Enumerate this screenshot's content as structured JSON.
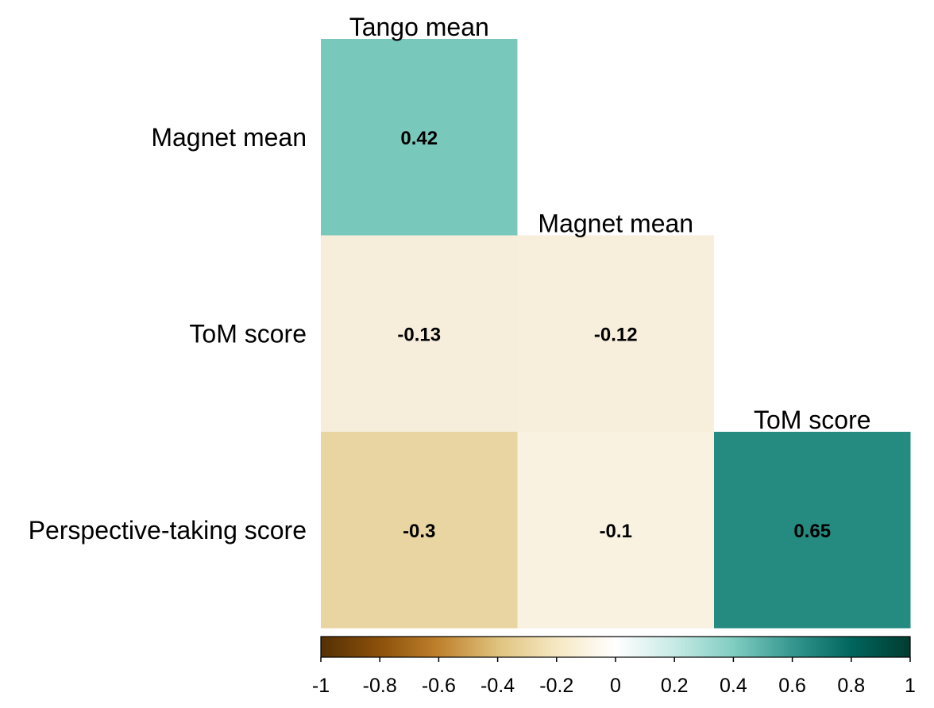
{
  "chart_data": {
    "type": "heatmap",
    "subtype": "lower-triangle correlation matrix",
    "row_labels": [
      "Magnet mean",
      "ToM score",
      "Perspective-taking score"
    ],
    "col_labels": [
      "Tango mean",
      "Magnet mean",
      "ToM score"
    ],
    "cells": [
      {
        "row": 0,
        "col": 0,
        "value": 0.42,
        "label": "0.42",
        "color": "#79c8bc"
      },
      {
        "row": 1,
        "col": 0,
        "value": -0.13,
        "label": "-0.13",
        "color": "#f6eddb"
      },
      {
        "row": 1,
        "col": 1,
        "value": -0.12,
        "label": "-0.12",
        "color": "#f7eedb"
      },
      {
        "row": 2,
        "col": 0,
        "value": -0.3,
        "label": "-0.3",
        "color": "#e9d5a2"
      },
      {
        "row": 2,
        "col": 1,
        "value": -0.1,
        "label": "-0.1",
        "color": "#f9f2e1"
      },
      {
        "row": 2,
        "col": 2,
        "value": 0.65,
        "label": "0.65",
        "color": "#258b80"
      }
    ],
    "colorbar": {
      "range": [
        -1,
        1
      ],
      "ticks": [
        -1,
        -0.8,
        -0.6,
        -0.4,
        -0.2,
        0,
        0.2,
        0.4,
        0.6,
        0.8,
        1
      ],
      "tick_labels": [
        "-1",
        "-0.8",
        "-0.6",
        "-0.4",
        "-0.2",
        "0",
        "0.2",
        "0.4",
        "0.6",
        "0.8",
        "1"
      ],
      "palette": "BrBG",
      "stops": [
        {
          "v": -1.0,
          "color": "#543005"
        },
        {
          "v": -0.8,
          "color": "#8c510a"
        },
        {
          "v": -0.6,
          "color": "#bf812d"
        },
        {
          "v": -0.4,
          "color": "#dfc27d"
        },
        {
          "v": -0.2,
          "color": "#f6e8c3"
        },
        {
          "v": 0.0,
          "color": "#ffffff"
        },
        {
          "v": 0.2,
          "color": "#c7eae5"
        },
        {
          "v": 0.4,
          "color": "#80cdc1"
        },
        {
          "v": 0.6,
          "color": "#35978f"
        },
        {
          "v": 0.8,
          "color": "#01665e"
        },
        {
          "v": 1.0,
          "color": "#003c30"
        }
      ]
    }
  }
}
